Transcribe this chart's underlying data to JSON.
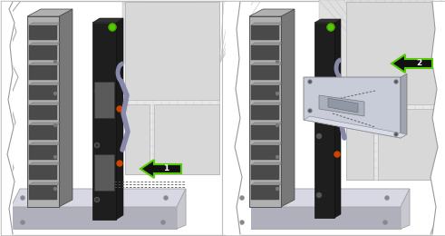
{
  "figure_width": 4.91,
  "figure_height": 2.6,
  "dpi": 100,
  "bg": "#ffffff",
  "border": "#bbbbbb",
  "white": "#ffffff",
  "light_gray": "#e8e8e8",
  "mid_gray": "#aaaaaa",
  "dark_gray": "#666666",
  "darker_gray": "#444444",
  "darkest": "#222222",
  "rack_body": "#8a8a8a",
  "rack_slot_dark": "#4a4a4a",
  "rack_slot_light": "#9a9a9a",
  "rack_face": "#b0b0b0",
  "rack_side": "#787878",
  "floor_top": "#d8d8e4",
  "floor_side": "#b0b0bc",
  "module_dark": "#1e1e1e",
  "module_face": "#2e2e2e",
  "module_gray": "#3a3a3a",
  "chassis_top": "#c8ccd8",
  "chassis_side": "#a0a4b0",
  "green": "#55cc00",
  "green_dark": "#338800",
  "arrow_fill": "#111111",
  "wall_hatch": "#cccccc",
  "wall_base": "#e0e0e0",
  "server_bg": "#d8d8d8",
  "server_grid": "#c0c0c0",
  "cable_color": "#8888aa",
  "screw_color": "#888888",
  "red_dot": "#cc3300",
  "dashed": "#555555"
}
